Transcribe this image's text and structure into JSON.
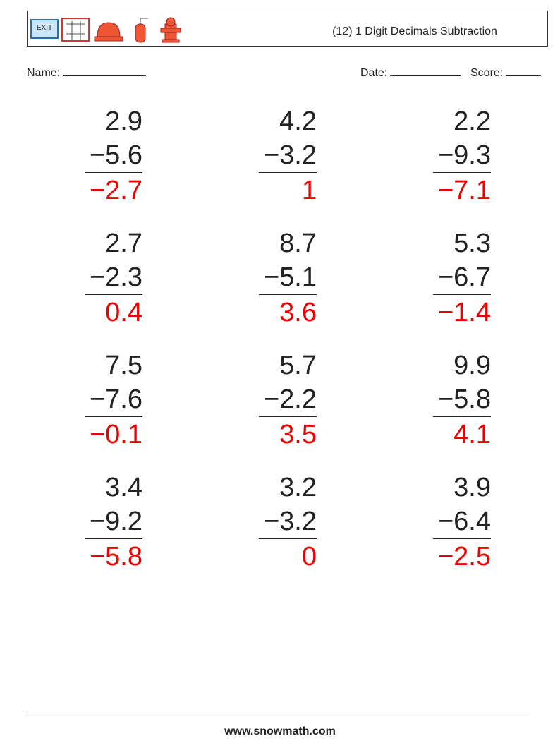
{
  "header": {
    "title": "(12) 1 Digit Decimals Subtraction"
  },
  "fields": {
    "name": "Name:",
    "date": "Date:",
    "score": "Score:"
  },
  "problems": [
    [
      {
        "top": "2.9",
        "bottom": "−5.6",
        "answer": "−2.7"
      },
      {
        "top": "4.2",
        "bottom": "−3.2",
        "answer": "1"
      },
      {
        "top": "2.2",
        "bottom": "−9.3",
        "answer": "−7.1"
      }
    ],
    [
      {
        "top": "2.7",
        "bottom": "−2.3",
        "answer": "0.4"
      },
      {
        "top": "8.7",
        "bottom": "−5.1",
        "answer": "3.6"
      },
      {
        "top": "5.3",
        "bottom": "−6.7",
        "answer": "−1.4"
      }
    ],
    [
      {
        "top": "7.5",
        "bottom": "−7.6",
        "answer": "−0.1"
      },
      {
        "top": "5.7",
        "bottom": "−2.2",
        "answer": "3.5"
      },
      {
        "top": "9.9",
        "bottom": "−5.8",
        "answer": "4.1"
      }
    ],
    [
      {
        "top": "3.4",
        "bottom": "−9.2",
        "answer": "−5.8"
      },
      {
        "top": "3.2",
        "bottom": "−3.2",
        "answer": "0"
      },
      {
        "top": "3.9",
        "bottom": "−6.4",
        "answer": "−2.5"
      }
    ]
  ],
  "footer": {
    "site": "www.snowmath.com"
  }
}
